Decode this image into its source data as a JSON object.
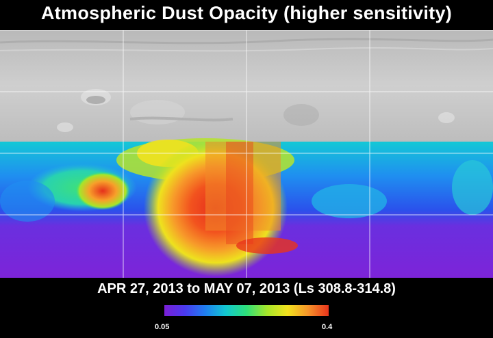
{
  "title": "Atmospheric Dust Opacity (higher sensitivity)",
  "date_range": "APR 27, 2013 to MAY 07, 2013 (Ls 308.8-314.8)",
  "colorbar": {
    "min_label": "0.05",
    "max_label": "0.4",
    "colors": [
      "#7a1fd6",
      "#4a3af0",
      "#1f7ff0",
      "#12c8d0",
      "#2ee07a",
      "#a6e62a",
      "#f2e21e",
      "#f7952a",
      "#e8341c"
    ]
  },
  "map": {
    "no_data_band_color": "#c2c2c2",
    "grid_color": "#ffffff"
  }
}
